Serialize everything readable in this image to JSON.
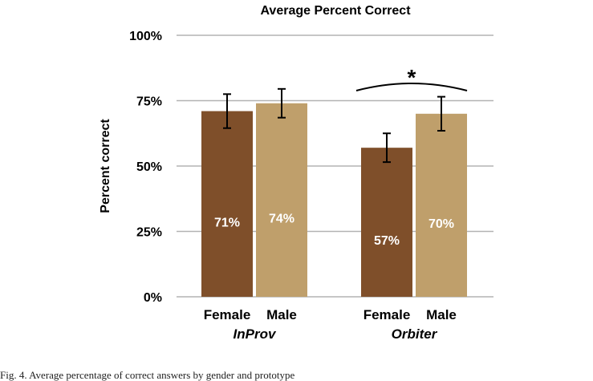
{
  "chart_data": {
    "type": "bar",
    "title": "Average Percent Correct",
    "ylabel": "Percent correct",
    "ylim": [
      0,
      100
    ],
    "yticks": [
      0,
      25,
      50,
      75,
      100
    ],
    "ytick_labels": [
      "0%",
      "25%",
      "50%",
      "75%",
      "100%"
    ],
    "grid": true,
    "groups": [
      {
        "name": "InProv",
        "bars": [
          {
            "label": "Female",
            "value": 71,
            "value_label": "71%",
            "err_low": 64.5,
            "err_high": 77.5,
            "color": "#7f4f2a"
          },
          {
            "label": "Male",
            "value": 74,
            "value_label": "74%",
            "err_low": 68.5,
            "err_high": 79.5,
            "color": "#bf9f6b"
          }
        ]
      },
      {
        "name": "Orbiter",
        "bars": [
          {
            "label": "Female",
            "value": 57,
            "value_label": "57%",
            "err_low": 51.5,
            "err_high": 62.5,
            "color": "#7f4f2a"
          },
          {
            "label": "Male",
            "value": 70,
            "value_label": "70%",
            "err_low": 63.5,
            "err_high": 76.5,
            "color": "#bf9f6b"
          }
        ]
      }
    ],
    "annotation": {
      "text": "*",
      "between_group": "Orbiter"
    }
  },
  "caption": "Fig. 4. Average percentage of correct answers by gender and prototype"
}
